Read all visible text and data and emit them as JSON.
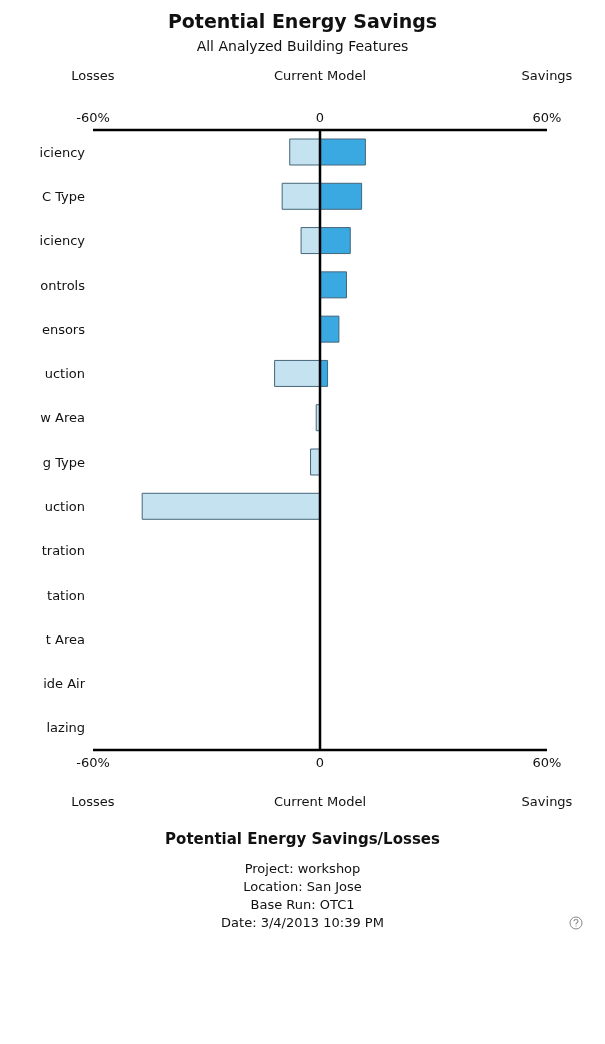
{
  "chart_data": {
    "type": "bar",
    "orientation": "horizontal",
    "stacked": true,
    "title": "Potential Energy Savings",
    "subtitle": "All Analyzed Building Features",
    "xlabel": "Potential Energy Savings/Losses",
    "categories": [
      "iciency",
      "C Type",
      "iciency",
      "ontrols",
      "ensors",
      "uction",
      "w Area",
      "g Type",
      "uction",
      "tration",
      "tation",
      "t Area",
      "ide Air",
      "lazing"
    ],
    "series": [
      {
        "color": "#c4e2ef",
        "values": [
          -8,
          -10,
          -5,
          null,
          null,
          -12,
          -1,
          -2.5,
          -47,
          null,
          null,
          null,
          null,
          null
        ]
      },
      {
        "color": "#3aa9e2",
        "values": [
          12,
          11,
          8,
          7,
          5,
          2,
          null,
          null,
          null,
          null,
          null,
          null,
          null,
          null
        ]
      }
    ],
    "xlim": [
      -60,
      60
    ],
    "xticks": [
      {
        "value": -60,
        "label": "-60%"
      },
      0,
      {
        "value": 60,
        "label": "60%"
      }
    ],
    "x2lim": [
      -60,
      60
    ],
    "x2ticks": [
      {
        "value": -60,
        "label": "-60%"
      },
      0,
      {
        "value": 60,
        "label": "60%"
      }
    ],
    "ref_lines": [
      {
        "axis": "x",
        "value": 0,
        "color": "#000000"
      }
    ],
    "grid": false,
    "legend": false,
    "annotations": [
      "Losses",
      "Current Model",
      "Savings",
      "Losses",
      "Current Model",
      "Savings",
      "Project: workshop",
      "Location: San Jose",
      "Base Run: OTC1",
      "Date: 3/4/2013 10:39 PM"
    ]
  }
}
